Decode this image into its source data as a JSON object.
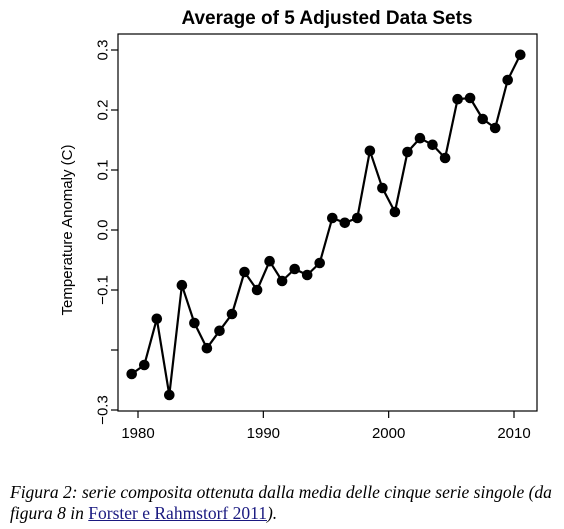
{
  "chart_data": {
    "type": "line",
    "title": "Average of 5 Adjusted Data Sets",
    "xlabel": "",
    "ylabel": "Temperature Anomaly (C)",
    "xlim": [
      1979,
      2011
    ],
    "ylim": [
      -0.3,
      0.3
    ],
    "xticks": [
      1980,
      1990,
      2000,
      2010
    ],
    "xtick_labels": [
      "1980",
      "1990",
      "2000",
      "2010"
    ],
    "yticks": [
      -0.3,
      -0.1,
      0.0,
      0.1,
      0.2,
      0.3
    ],
    "ytick_labels": [
      "−0.3",
      "−0.1",
      "0.0",
      "0.1",
      "0.2",
      "0.3"
    ],
    "yticks_unlabeled": [
      -0.2
    ],
    "grid": false,
    "markers": "filled-circle",
    "color": "#000000",
    "series": [
      {
        "x": [
          1979.5,
          1980.5,
          1981.5,
          1982.5,
          1983.5,
          1984.5,
          1985.5,
          1986.5,
          1987.5,
          1988.5,
          1989.5,
          1990.5,
          1991.5,
          1992.5,
          1993.5,
          1994.5,
          1995.5,
          1996.5,
          1997.5,
          1998.5,
          1999.5,
          2000.5,
          2001.5,
          2002.5,
          2003.5,
          2004.5,
          2005.5,
          2006.5,
          2007.5,
          2008.5,
          2009.5,
          2010.5
        ],
        "values": [
          -0.24,
          -0.225,
          -0.148,
          -0.275,
          -0.092,
          -0.155,
          -0.197,
          -0.168,
          -0.14,
          -0.07,
          -0.1,
          -0.052,
          -0.085,
          -0.065,
          -0.075,
          -0.055,
          0.02,
          0.012,
          0.02,
          0.132,
          0.07,
          0.03,
          0.13,
          0.153,
          0.142,
          0.12,
          0.218,
          0.22,
          0.185,
          0.17,
          0.25,
          0.292
        ]
      }
    ]
  },
  "caption": {
    "text_before": "Figura 2: serie composita ottenuta dalla media delle cinque serie singole (da figura 8 in ",
    "link_text": "Forster e Rahmstorf 2011",
    "text_after": ")."
  }
}
